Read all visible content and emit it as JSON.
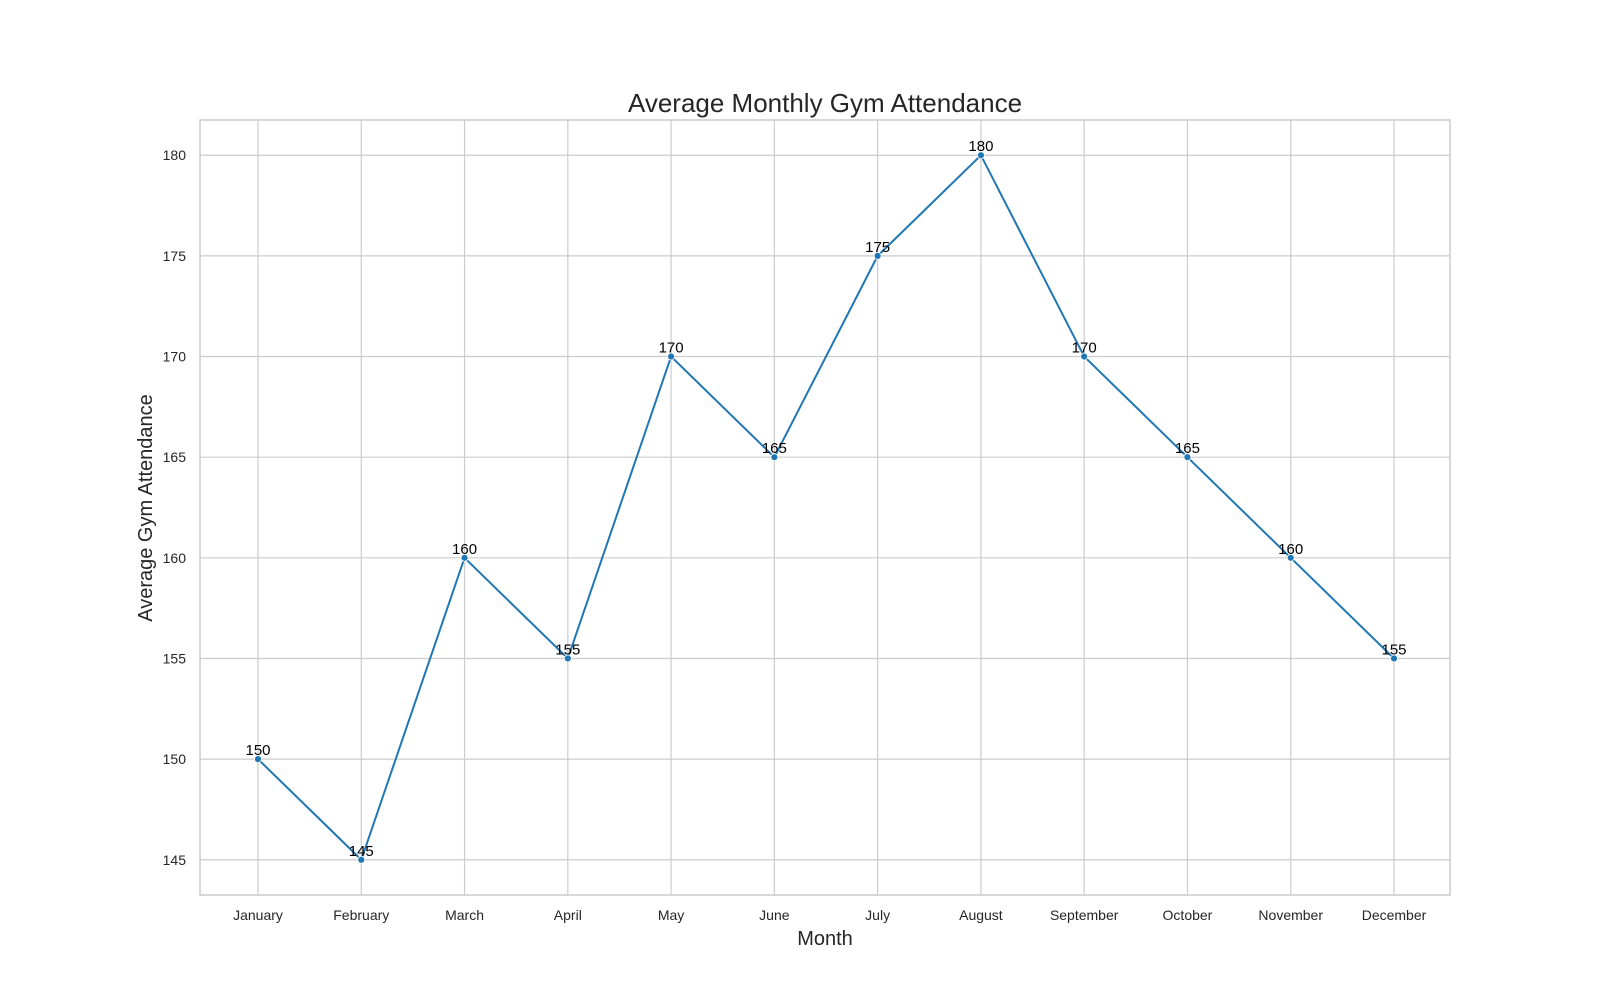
{
  "chart_data": {
    "type": "line",
    "title": "Average Monthly Gym Attendance",
    "xlabel": "Month",
    "ylabel": "Average Gym Attendance",
    "categories": [
      "January",
      "February",
      "March",
      "April",
      "May",
      "June",
      "July",
      "August",
      "September",
      "October",
      "November",
      "December"
    ],
    "values": [
      150,
      145,
      160,
      155,
      170,
      165,
      175,
      180,
      170,
      165,
      160,
      155
    ],
    "yticks": [
      145,
      150,
      155,
      160,
      165,
      170,
      175,
      180
    ],
    "ylim": [
      143.25,
      181.75
    ],
    "grid": true,
    "legend": "none",
    "line_color": "#1f77b4"
  }
}
